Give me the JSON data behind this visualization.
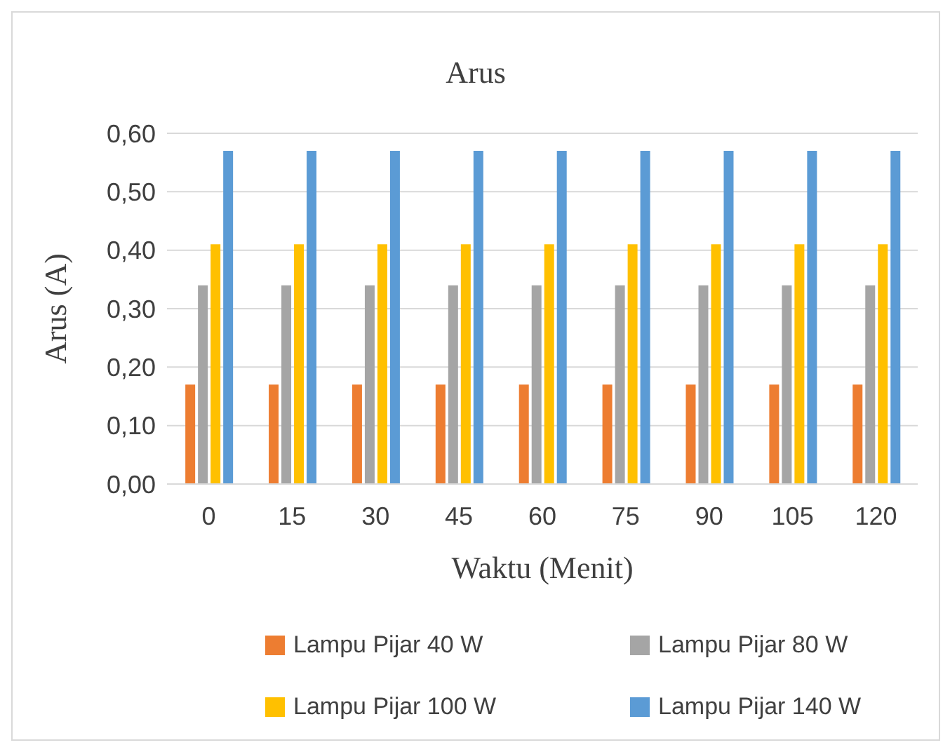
{
  "chart_data": {
    "type": "bar",
    "title": "Arus",
    "xlabel": "Waktu (Menit)",
    "ylabel": "Arus (A)",
    "categories": [
      "0",
      "15",
      "30",
      "45",
      "60",
      "75",
      "90",
      "105",
      "120"
    ],
    "series": [
      {
        "name": "Lampu Pijar 40 W",
        "color": "#ed7d31",
        "values": [
          0.17,
          0.17,
          0.17,
          0.17,
          0.17,
          0.17,
          0.17,
          0.17,
          0.17
        ]
      },
      {
        "name": "Lampu Pijar 80 W",
        "color": "#a5a5a5",
        "values": [
          0.34,
          0.34,
          0.34,
          0.34,
          0.34,
          0.34,
          0.34,
          0.34,
          0.34
        ]
      },
      {
        "name": "Lampu Pijar 100 W",
        "color": "#ffc000",
        "values": [
          0.41,
          0.41,
          0.41,
          0.41,
          0.41,
          0.41,
          0.41,
          0.41,
          0.41
        ]
      },
      {
        "name": "Lampu Pijar 140 W",
        "color": "#5b9bd5",
        "values": [
          0.57,
          0.57,
          0.57,
          0.57,
          0.57,
          0.57,
          0.57,
          0.57,
          0.57
        ]
      }
    ],
    "ylim": [
      0,
      0.6
    ],
    "yticks": [
      {
        "value": 0,
        "label": "0,00"
      },
      {
        "value": 0.1,
        "label": "0,10"
      },
      {
        "value": 0.2,
        "label": "0,20"
      },
      {
        "value": 0.3,
        "label": "0,30"
      },
      {
        "value": 0.4,
        "label": "0,40"
      },
      {
        "value": 0.5,
        "label": "0,50"
      },
      {
        "value": 0.6,
        "label": "0,60"
      }
    ],
    "grid": "y",
    "legend": "bottom"
  }
}
